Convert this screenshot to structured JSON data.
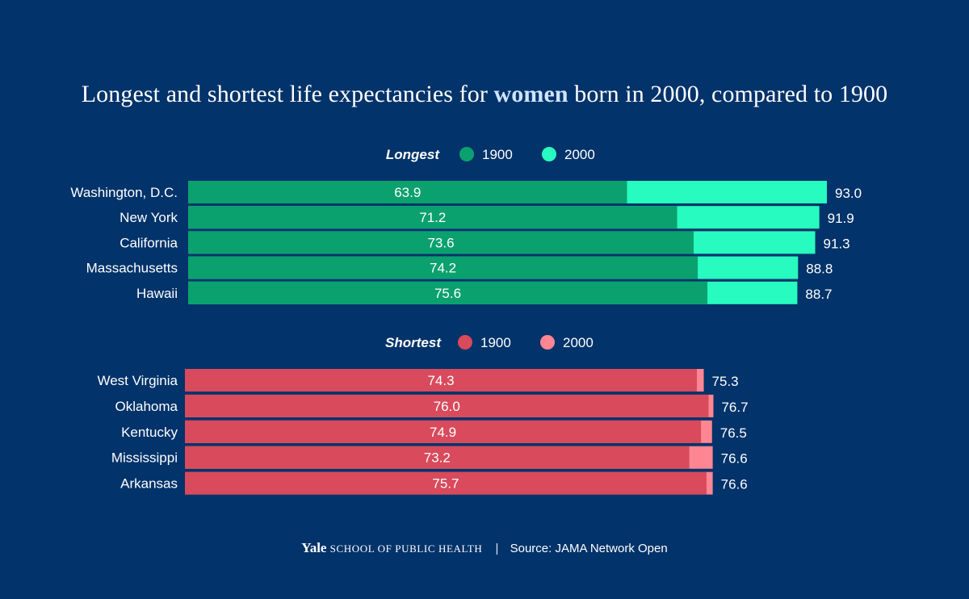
{
  "title": {
    "before": "Longest and shortest life expectancies for ",
    "highlight": "women",
    "after": " born in 2000, compared to 1900"
  },
  "footer": {
    "brand": "Yale",
    "school": "SCHOOL OF PUBLIC HEALTH",
    "separator": "|",
    "source": "Source: JAMA Network Open"
  },
  "colors": {
    "background": "#02336a",
    "longest_1900": "#0aa16f",
    "longest_2000": "#28fbbf",
    "shortest_1900": "#d84a5c",
    "shortest_2000": "#fe8692"
  },
  "chart_data": [
    {
      "type": "bar",
      "orientation": "horizontal",
      "group_label": "Longest",
      "legend": [
        "1900",
        "2000"
      ],
      "categories": [
        "Washington, D.C.",
        "New York",
        "California",
        "Massachusetts",
        "Hawaii"
      ],
      "series": [
        {
          "name": "1900",
          "values": [
            63.9,
            71.2,
            73.6,
            74.2,
            75.6
          ]
        },
        {
          "name": "2000",
          "values": [
            93.0,
            91.9,
            91.3,
            88.8,
            88.7
          ]
        }
      ],
      "value_labels_1900": [
        "63.9",
        "71.2",
        "73.6",
        "74.2",
        "75.6"
      ],
      "value_labels_2000": [
        "93.0",
        "91.9",
        "91.3",
        "88.8",
        "88.7"
      ],
      "xlim": [
        0,
        93
      ]
    },
    {
      "type": "bar",
      "orientation": "horizontal",
      "group_label": "Shortest",
      "legend": [
        "1900",
        "2000"
      ],
      "categories": [
        "West Virginia",
        "Oklahoma",
        "Kentucky",
        "Mississippi",
        "Arkansas"
      ],
      "series": [
        {
          "name": "1900",
          "values": [
            74.3,
            76.0,
            74.9,
            73.2,
            75.7
          ]
        },
        {
          "name": "2000",
          "values": [
            75.3,
            76.7,
            76.5,
            76.6,
            76.6
          ]
        }
      ],
      "value_labels_1900": [
        "74.3",
        "76.0",
        "74.9",
        "73.2",
        "75.7"
      ],
      "value_labels_2000": [
        "75.3",
        "76.7",
        "76.5",
        "76.6",
        "76.6"
      ],
      "xlim": [
        0,
        93
      ]
    }
  ]
}
